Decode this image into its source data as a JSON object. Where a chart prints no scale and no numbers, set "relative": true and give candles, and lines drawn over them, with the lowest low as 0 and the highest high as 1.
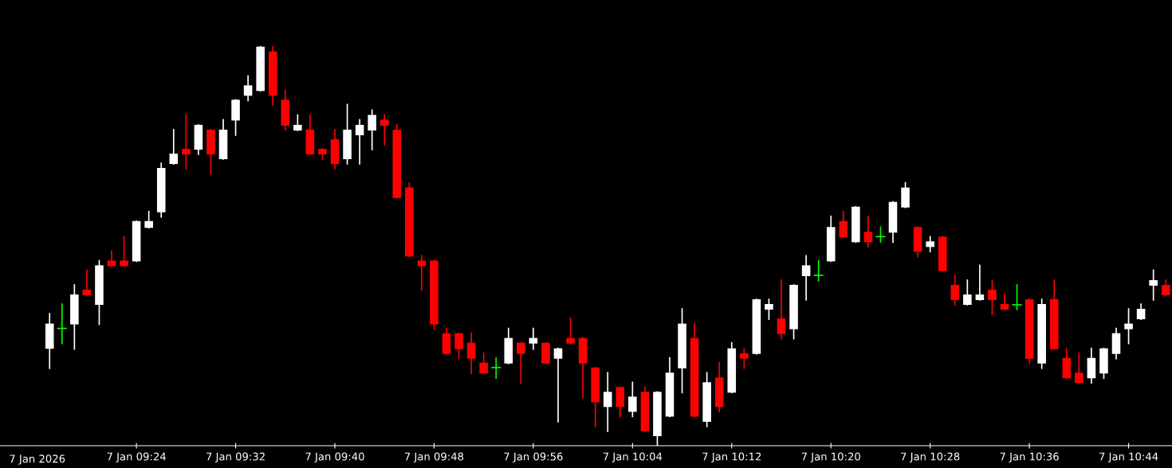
{
  "chart_data": {
    "type": "candlestick",
    "relative": true,
    "categories": [
      null,
      null,
      null,
      null,
      null,
      null,
      null,
      "7 Jan 09:24",
      null,
      null,
      null,
      null,
      null,
      null,
      null,
      "7 Jan 09:32",
      null,
      null,
      null,
      null,
      null,
      null,
      null,
      "7 Jan 09:40",
      null,
      null,
      null,
      null,
      null,
      null,
      null,
      "7 Jan 09:48",
      null,
      null,
      null,
      null,
      null,
      null,
      null,
      "7 Jan 09:56",
      null,
      null,
      null,
      null,
      null,
      null,
      null,
      "7 Jan 10:04",
      null,
      null,
      null,
      null,
      null,
      null,
      null,
      "7 Jan 10:12",
      null,
      null,
      null,
      null,
      null,
      null,
      null,
      "7 Jan 10:20",
      null,
      null,
      null,
      null,
      null,
      null,
      null,
      "7 Jan 10:28",
      null,
      null,
      null,
      null,
      null,
      null,
      null,
      "7 Jan 10:36",
      null,
      null,
      null,
      null,
      null,
      null,
      null,
      "7 Jan 10:44",
      null,
      null,
      null
    ],
    "ohlc": [
      [
        0.243,
        0.331,
        0.194,
        0.306
      ],
      [
        0.294,
        0.355,
        0.256,
        0.294
      ],
      [
        0.304,
        0.403,
        0.242,
        0.379
      ],
      [
        0.391,
        0.44,
        0.377,
        0.377
      ],
      [
        0.353,
        0.464,
        0.304,
        0.452
      ],
      [
        0.464,
        0.488,
        0.45,
        0.45
      ],
      [
        0.464,
        0.524,
        0.45,
        0.45
      ],
      [
        0.462,
        0.563,
        0.462,
        0.563
      ],
      [
        0.546,
        0.587,
        0.546,
        0.563
      ],
      [
        0.585,
        0.708,
        0.573,
        0.696
      ],
      [
        0.706,
        0.792,
        0.706,
        0.732
      ],
      [
        0.744,
        0.829,
        0.694,
        0.73
      ],
      [
        0.742,
        0.804,
        0.73,
        0.804
      ],
      [
        0.792,
        0.792,
        0.681,
        0.73
      ],
      [
        0.718,
        0.817,
        0.718,
        0.792
      ],
      [
        0.815,
        0.867,
        0.778,
        0.867
      ],
      [
        0.877,
        0.927,
        0.865,
        0.903
      ],
      [
        0.889,
        1,
        0.889,
        1
      ],
      [
        0.988,
        1,
        0.853,
        0.877
      ],
      [
        0.867,
        0.891,
        0.79,
        0.802
      ],
      [
        0.79,
        0.829,
        0.79,
        0.804
      ],
      [
        0.792,
        0.829,
        0.73,
        0.73
      ],
      [
        0.744,
        0.744,
        0.718,
        0.73
      ],
      [
        0.768,
        0.792,
        0.694,
        0.706
      ],
      [
        0.718,
        0.855,
        0.706,
        0.792
      ],
      [
        0.778,
        0.817,
        0.706,
        0.804
      ],
      [
        0.79,
        0.841,
        0.742,
        0.829
      ],
      [
        0.817,
        0.829,
        0.754,
        0.802
      ],
      [
        0.792,
        0.804,
        0.621,
        0.621
      ],
      [
        0.647,
        0.659,
        0.474,
        0.474
      ],
      [
        0.464,
        0.476,
        0.389,
        0.45
      ],
      [
        0.464,
        0.464,
        0.292,
        0.304
      ],
      [
        0.282,
        0.294,
        0.23,
        0.23
      ],
      [
        0.282,
        0.282,
        0.218,
        0.242
      ],
      [
        0.258,
        0.282,
        0.181,
        0.218
      ],
      [
        0.208,
        0.232,
        0.181,
        0.181
      ],
      [
        0.196,
        0.22,
        0.169,
        0.196
      ],
      [
        0.206,
        0.294,
        0.206,
        0.27
      ],
      [
        0.258,
        0.258,
        0.157,
        0.23
      ],
      [
        0.256,
        0.294,
        0.242,
        0.27
      ],
      [
        0.258,
        0.258,
        0.206,
        0.206
      ],
      [
        0.218,
        0.244,
        0.06,
        0.244
      ],
      [
        0.27,
        0.319,
        0.256,
        0.256
      ],
      [
        0.27,
        0.27,
        0.121,
        0.206
      ],
      [
        0.196,
        0.196,
        0.048,
        0.109
      ],
      [
        0.097,
        0.183,
        0.036,
        0.135
      ],
      [
        0.147,
        0.147,
        0.073,
        0.097
      ],
      [
        0.085,
        0.159,
        0.073,
        0.123
      ],
      [
        0.135,
        0.147,
        0.036,
        0.036
      ],
      [
        0.024,
        0.135,
        0,
        0.135
      ],
      [
        0.073,
        0.22,
        0.073,
        0.183
      ],
      [
        0.194,
        0.343,
        0.133,
        0.306
      ],
      [
        0.27,
        0.306,
        0.073,
        0.073
      ],
      [
        0.06,
        0.183,
        0.048,
        0.159
      ],
      [
        0.171,
        0.208,
        0.085,
        0.097
      ],
      [
        0.133,
        0.258,
        0.133,
        0.244
      ],
      [
        0.232,
        0.244,
        0.194,
        0.218
      ],
      [
        0.23,
        0.367,
        0.23,
        0.367
      ],
      [
        0.341,
        0.367,
        0.317,
        0.355
      ],
      [
        0.319,
        0.415,
        0.268,
        0.28
      ],
      [
        0.292,
        0.403,
        0.268,
        0.403
      ],
      [
        0.425,
        0.476,
        0.365,
        0.452
      ],
      [
        0.427,
        0.464,
        0.413,
        0.427
      ],
      [
        0.462,
        0.575,
        0.462,
        0.548
      ],
      [
        0.563,
        0.587,
        0.522,
        0.522
      ],
      [
        0.51,
        0.599,
        0.51,
        0.599
      ],
      [
        0.536,
        0.575,
        0.498,
        0.51
      ],
      [
        0.524,
        0.548,
        0.51,
        0.524
      ],
      [
        0.534,
        0.611,
        0.51,
        0.611
      ],
      [
        0.597,
        0.659,
        0.597,
        0.647
      ],
      [
        0.548,
        0.548,
        0.474,
        0.486
      ],
      [
        0.498,
        0.524,
        0.486,
        0.512
      ],
      [
        0.524,
        0.524,
        0.438,
        0.438
      ],
      [
        0.403,
        0.427,
        0.353,
        0.365
      ],
      [
        0.353,
        0.415,
        0.353,
        0.379
      ],
      [
        0.365,
        0.452,
        0.365,
        0.379
      ],
      [
        0.391,
        0.415,
        0.329,
        0.365
      ],
      [
        0.355,
        0.379,
        0.341,
        0.341
      ],
      [
        0.353,
        0.403,
        0.341,
        0.353
      ],
      [
        0.367,
        0.367,
        0.206,
        0.218
      ],
      [
        0.206,
        0.367,
        0.194,
        0.355
      ],
      [
        0.367,
        0.415,
        0.242,
        0.242
      ],
      [
        0.22,
        0.244,
        0.169,
        0.169
      ],
      [
        0.183,
        0.232,
        0.157,
        0.157
      ],
      [
        0.169,
        0.244,
        0.157,
        0.22
      ],
      [
        0.181,
        0.244,
        0.169,
        0.244
      ],
      [
        0.23,
        0.294,
        0.218,
        0.282
      ],
      [
        0.292,
        0.343,
        0.256,
        0.306
      ],
      [
        0.317,
        0.355,
        0.317,
        0.343
      ],
      [
        0.401,
        0.44,
        0.365,
        0.415
      ],
      [
        0.403,
        0.415,
        0.377,
        0.377
      ]
    ],
    "colors": [
      "#ffffff",
      "#00ff00",
      "#ffffff",
      "#ff0000",
      "#ffffff",
      "#ff0000",
      "#ff0000",
      "#ffffff",
      "#ffffff",
      "#ffffff",
      "#ffffff",
      "#ff0000",
      "#ffffff",
      "#ff0000",
      "#ffffff",
      "#ffffff",
      "#ffffff",
      "#ffffff",
      "#ff0000",
      "#ff0000",
      "#ffffff",
      "#ff0000",
      "#ff0000",
      "#ff0000",
      "#ffffff",
      "#ffffff",
      "#ffffff",
      "#ff0000",
      "#ff0000",
      "#ff0000",
      "#ff0000",
      "#ff0000",
      "#ff0000",
      "#ff0000",
      "#ff0000",
      "#ff0000",
      "#00ff00",
      "#ffffff",
      "#ff0000",
      "#ffffff",
      "#ff0000",
      "#ffffff",
      "#ff0000",
      "#ff0000",
      "#ff0000",
      "#ffffff",
      "#ff0000",
      "#ffffff",
      "#ff0000",
      "#ffffff",
      "#ffffff",
      "#ffffff",
      "#ff0000",
      "#ffffff",
      "#ff0000",
      "#ffffff",
      "#ff0000",
      "#ffffff",
      "#ffffff",
      "#ff0000",
      "#ffffff",
      "#ffffff",
      "#00ff00",
      "#ffffff",
      "#ff0000",
      "#ffffff",
      "#ff0000",
      "#00ff00",
      "#ffffff",
      "#ffffff",
      "#ff0000",
      "#ffffff",
      "#ff0000",
      "#ff0000",
      "#ffffff",
      "#ffffff",
      "#ff0000",
      "#ff0000",
      "#00ff00",
      "#ff0000",
      "#ffffff",
      "#ff0000",
      "#ff0000",
      "#ff0000",
      "#ffffff",
      "#ffffff",
      "#ffffff",
      "#ffffff",
      "#ffffff",
      "#ffffff",
      "#ff0000"
    ],
    "annotations": [
      "7 Jan 2026"
    ],
    "grid": false
  }
}
